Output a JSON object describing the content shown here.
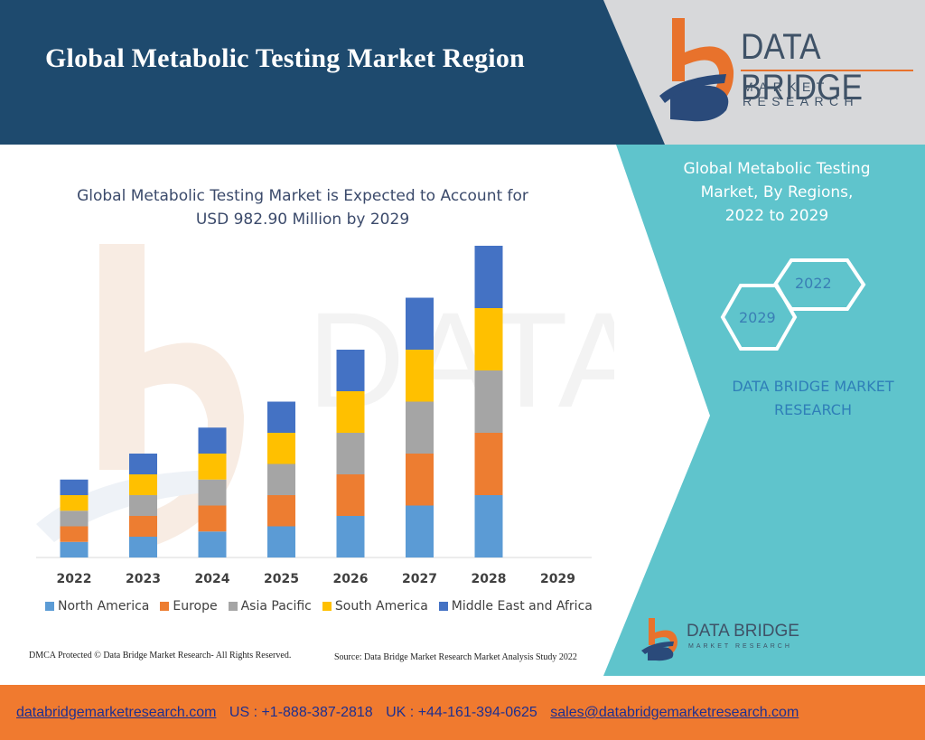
{
  "header": {
    "title": "Global Metabolic Testing Market Region"
  },
  "logo": {
    "name": "DATA BRIDGE",
    "tagline": "MARKET RESEARCH"
  },
  "side_panel": {
    "title_lines": [
      "Global Metabolic Testing",
      "Market, By Regions,",
      "2022 to 2029"
    ],
    "hex_labels": [
      "2022",
      "2029"
    ],
    "brand_lines": [
      "DATA BRIDGE MARKET",
      "RESEARCH"
    ]
  },
  "chart_data": {
    "type": "bar",
    "stacked": true,
    "title_lines": [
      "Global Metabolic Testing Market is Expected to Account for",
      "USD 982.90 Million by 2029"
    ],
    "categories": [
      "2022",
      "2023",
      "2024",
      "2025",
      "2026",
      "2027",
      "2028",
      "2029"
    ],
    "series": [
      {
        "name": "North America",
        "color": "#5b9bd5",
        "values": [
          3,
          4,
          5,
          6,
          8,
          10,
          12,
          0
        ]
      },
      {
        "name": "Europe",
        "color": "#ed7d31",
        "values": [
          3,
          4,
          5,
          6,
          8,
          10,
          12,
          0
        ]
      },
      {
        "name": "Asia Pacific",
        "color": "#a5a5a5",
        "values": [
          3,
          4,
          5,
          6,
          8,
          10,
          12,
          0
        ]
      },
      {
        "name": "South America",
        "color": "#ffc000",
        "values": [
          3,
          4,
          5,
          6,
          8,
          10,
          12,
          0
        ]
      },
      {
        "name": "Middle East and Africa",
        "color": "#4472c4",
        "values": [
          3,
          4,
          5,
          6,
          8,
          10,
          12,
          0
        ]
      }
    ],
    "ylim": [
      0,
      60
    ],
    "grid": false,
    "legend_position": "bottom"
  },
  "footnotes": {
    "left": "DMCA Protected © Data Bridge Market Research- All Rights Reserved.",
    "right": "Source: Data Bridge Market Research Market Analysis Study 2022"
  },
  "footer": {
    "website": "databridgemarketresearch.com",
    "us_phone": "US : +1-888-387-2818",
    "uk_phone": "UK : +44-161-394-0625",
    "email": "sales@databridgemarketresearch.com"
  },
  "colors": {
    "header_blue": "#1e4a6e",
    "teal_panel": "#5fc4cc",
    "footer_orange": "#f07a2f",
    "logo_orange": "#e8722c",
    "logo_navy": "#2a4a7a"
  }
}
